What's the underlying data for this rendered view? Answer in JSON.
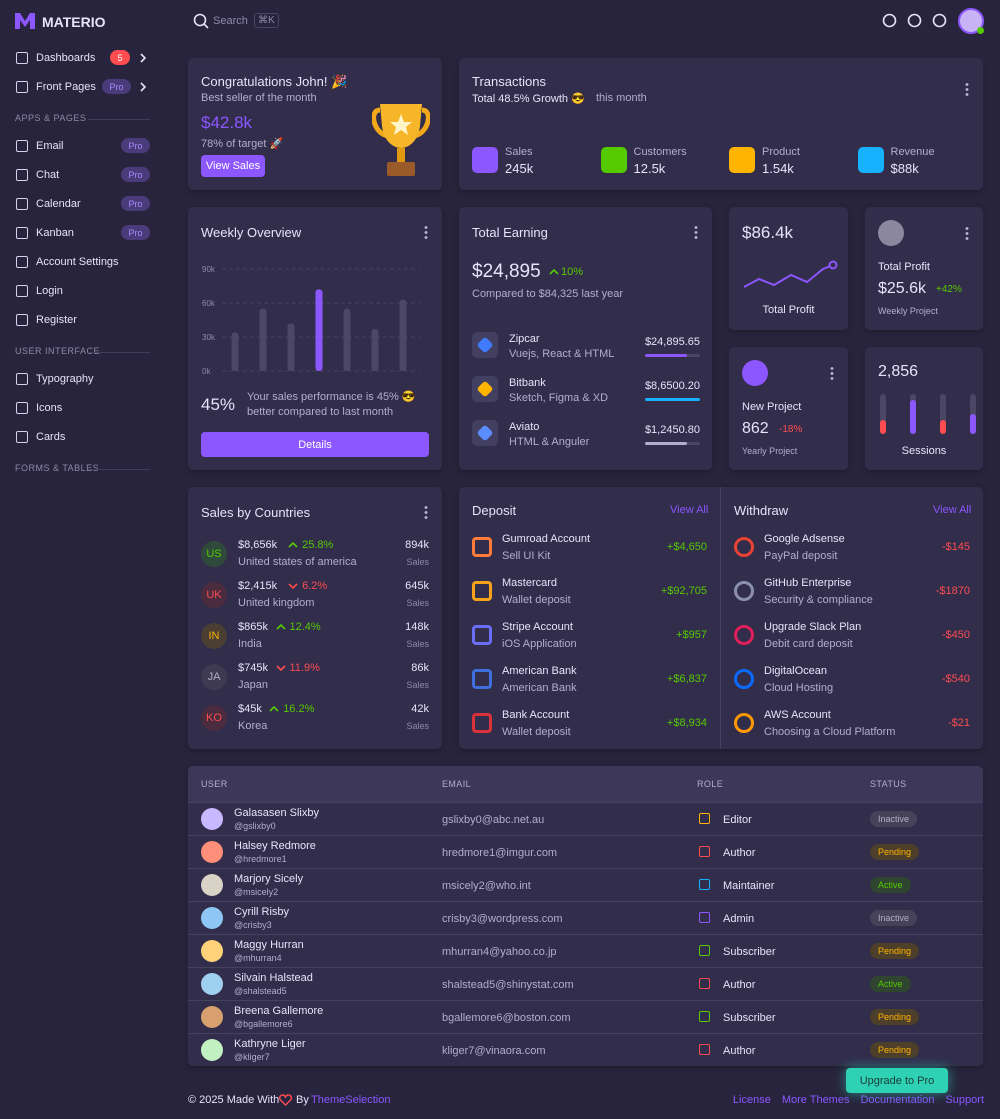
{
  "brand": "MATERIO",
  "search": {
    "placeholder": "Search",
    "shortcut": "⌘K"
  },
  "nav": [
    {
      "items": [
        {
          "label": "Dashboards",
          "badge": "5"
        },
        {
          "label": "Front Pages",
          "badge": "Pro"
        }
      ]
    },
    {
      "title": "APPS & PAGES",
      "items": [
        {
          "label": "Email",
          "badge": "Pro"
        },
        {
          "label": "Chat",
          "badge": "Pro"
        },
        {
          "label": "Calendar",
          "badge": "Pro"
        },
        {
          "label": "Kanban",
          "badge": "Pro"
        },
        {
          "label": "Account Settings"
        },
        {
          "label": "Login"
        },
        {
          "label": "Register"
        }
      ]
    },
    {
      "title": "USER INTERFACE",
      "items": [
        {
          "label": "Typography"
        },
        {
          "label": "Icons"
        },
        {
          "label": "Cards"
        }
      ]
    },
    {
      "title": "FORMS & TABLES",
      "items": []
    }
  ],
  "congrats": {
    "title": "Congratulations John! 🎉",
    "subtitle": "Best seller of the month",
    "amount": "$42.8k",
    "target": "78% of target 🚀",
    "button": "View Sales"
  },
  "transactions": {
    "title": "Transactions",
    "growth": "Total 48.5% Growth 😎",
    "period": "this month",
    "stats": [
      {
        "label": "Sales",
        "value": "245k",
        "color": "#8c57ff"
      },
      {
        "label": "Customers",
        "value": "12.5k",
        "color": "#56ca00"
      },
      {
        "label": "Product",
        "value": "1.54k",
        "color": "#ffb400"
      },
      {
        "label": "Revenue",
        "value": "$88k",
        "color": "#16b1ff"
      }
    ]
  },
  "weekly_overview": {
    "title": "Weekly Overview",
    "percent": "45%",
    "text": "Your sales performance is 45% 😎 better compared to last month",
    "button": "Details",
    "chart_data": {
      "type": "bar",
      "categories": [
        null,
        null,
        null,
        null,
        null,
        null,
        null
      ],
      "values": [
        34000,
        55000,
        42000,
        72000,
        55000,
        37000,
        63000
      ],
      "colors": [
        "#4b4766",
        "#4b4766",
        "#4b4766",
        "#8c57ff",
        "#4b4766",
        "#4b4766",
        "#4b4766"
      ],
      "ylim": [
        0,
        90000
      ],
      "yticks": [
        {
          "value": 0,
          "label": "0k"
        },
        {
          "value": 30000,
          "label": "30k"
        },
        {
          "value": 60000,
          "label": "60k"
        },
        {
          "value": 90000,
          "label": "90k"
        }
      ],
      "grid": true
    }
  },
  "total_earning": {
    "title": "Total Earning",
    "amount": "$24,895",
    "change": "10%",
    "subtitle": "Compared to $84,325 last year",
    "items": [
      {
        "name": "Zipcar",
        "desc": "Vuejs, React & HTML",
        "amount": "$24,895.65"
      },
      {
        "name": "Bitbank",
        "desc": "Sketch, Figma & XD",
        "amount": "$8,6500.20"
      },
      {
        "name": "Aviato",
        "desc": "HTML & Anguler",
        "amount": "$1,2450.80"
      }
    ]
  },
  "profit": {
    "amount": "$86.4k",
    "label": "Total Profit"
  },
  "total_profit": {
    "title": "Total Profit",
    "amount": "$25.6k",
    "change": "+42%",
    "subtitle": "Weekly Project"
  },
  "new_project": {
    "title": "New Project",
    "amount": "862",
    "change": "-18%",
    "subtitle": "Yearly Project"
  },
  "sessions": {
    "value": "2,856",
    "label": "Sessions"
  },
  "countries": {
    "title": "Sales by Countries",
    "rows": [
      {
        "code": "US",
        "amount": "$8,656k",
        "change": "25.8%",
        "country": "United states of america",
        "sales": "894k",
        "sales_label": "Sales"
      },
      {
        "code": "UK",
        "amount": "$2,415k",
        "change": "6.2%",
        "country": "United kingdom",
        "sales": "645k",
        "sales_label": "Sales"
      },
      {
        "code": "IN",
        "amount": "$865k",
        "change": "12.4%",
        "country": "India",
        "sales": "148k",
        "sales_label": "Sales"
      },
      {
        "code": "JA",
        "amount": "$745k",
        "change": "11.9%",
        "country": "Japan",
        "sales": "86k",
        "sales_label": "Sales"
      },
      {
        "code": "KO",
        "amount": "$45k",
        "change": "16.2%",
        "country": "Korea",
        "sales": "42k",
        "sales_label": "Sales"
      }
    ]
  },
  "deposit": {
    "title": "Deposit",
    "link": "View All",
    "items": [
      {
        "name": "Gumroad Account",
        "desc": "Sell UI Kit",
        "amount": "+$4,650"
      },
      {
        "name": "Mastercard",
        "desc": "Wallet deposit",
        "amount": "+$92,705"
      },
      {
        "name": "Stripe Account",
        "desc": "iOS Application",
        "amount": "+$957"
      },
      {
        "name": "American Bank",
        "desc": "American Bank",
        "amount": "+$6,837"
      },
      {
        "name": "Bank Account",
        "desc": "Wallet deposit",
        "amount": "+$8,934"
      }
    ]
  },
  "withdraw": {
    "title": "Withdraw",
    "link": "View All",
    "items": [
      {
        "name": "Google Adsense",
        "desc": "PayPal deposit",
        "amount": "-$145"
      },
      {
        "name": "GitHub Enterprise",
        "desc": "Security & compliance",
        "amount": "-$1870"
      },
      {
        "name": "Upgrade Slack Plan",
        "desc": "Debit card deposit",
        "amount": "-$450"
      },
      {
        "name": "DigitalOcean",
        "desc": "Cloud Hosting",
        "amount": "-$540"
      },
      {
        "name": "AWS Account",
        "desc": "Choosing a Cloud Platform",
        "amount": "-$21"
      }
    ]
  },
  "table": {
    "headers": [
      "USER",
      "EMAIL",
      "ROLE",
      "STATUS"
    ],
    "rows": [
      {
        "name": "Galasasen Slixby",
        "handle": "@gslixby0",
        "email": "gslixby0@abc.net.au",
        "role": "Editor",
        "status": "Inactive"
      },
      {
        "name": "Halsey Redmore",
        "handle": "@hredmore1",
        "email": "hredmore1@imgur.com",
        "role": "Author",
        "status": "Pending"
      },
      {
        "name": "Marjory Sicely",
        "handle": "@msicely2",
        "email": "msicely2@who.int",
        "role": "Maintainer",
        "status": "Active"
      },
      {
        "name": "Cyrill Risby",
        "handle": "@crisby3",
        "email": "crisby3@wordpress.com",
        "role": "Admin",
        "status": "Inactive"
      },
      {
        "name": "Maggy Hurran",
        "handle": "@mhurran4",
        "email": "mhurran4@yahoo.co.jp",
        "role": "Subscriber",
        "status": "Pending"
      },
      {
        "name": "Silvain Halstead",
        "handle": "@shalstead5",
        "email": "shalstead5@shinystat.com",
        "role": "Author",
        "status": "Active"
      },
      {
        "name": "Breena Gallemore",
        "handle": "@bgallemore6",
        "email": "bgallemore6@boston.com",
        "role": "Subscriber",
        "status": "Pending"
      },
      {
        "name": "Kathryne Liger",
        "handle": "@kliger7",
        "email": "kliger7@vinaora.com",
        "role": "Author",
        "status": "Pending"
      }
    ]
  },
  "footer": {
    "copyright": "© 2025 Made With",
    "by": "By",
    "company": "ThemeSelection",
    "links": [
      "License",
      "More Themes",
      "Documentation",
      "Support"
    ],
    "button": "Upgrade to Pro"
  }
}
